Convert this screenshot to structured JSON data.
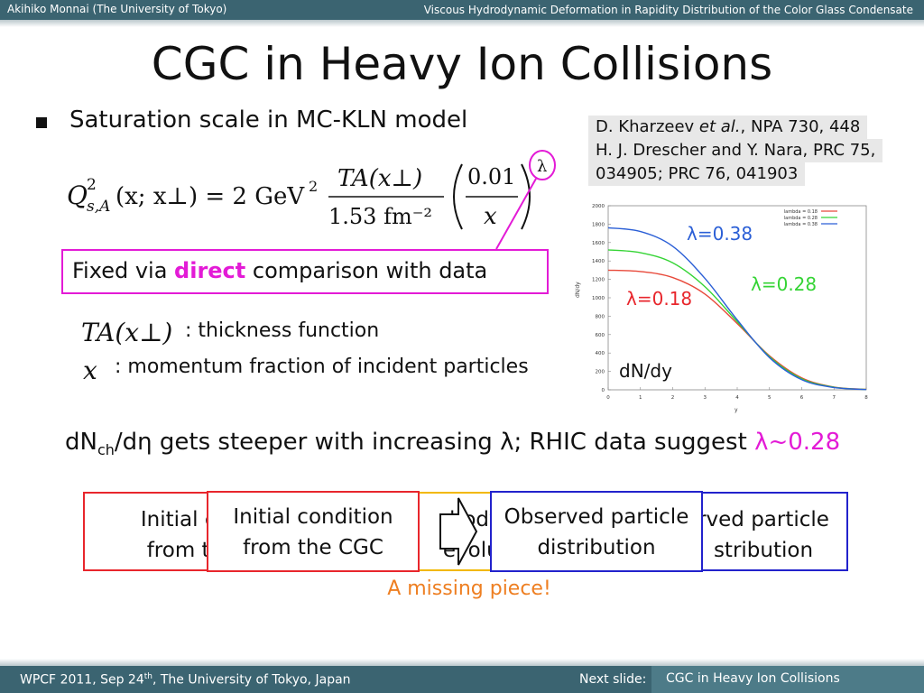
{
  "header": {
    "author": "Akihiko Monnai (The University of Tokyo)",
    "talk_title": "Viscous Hydrodynamic Deformation in Rapidity Distribution of the Color Glass Condensate"
  },
  "slide": {
    "title": "CGC in Heavy Ion Collisions",
    "bullet": "Saturation scale in MC-KLN model",
    "refs": {
      "line1_pre": "D. Kharzeev ",
      "line1_em": "et al.",
      "line1_post": ", NPA 730, 448",
      "line2": "H. J. Drescher and Y. Nara, PRC 75,",
      "line3": "034905; PRC 76, 041903"
    },
    "formula": {
      "lhs_main": "Q",
      "lhs_sup": "2",
      "lhs_sub": "s,A",
      "lhs_args": "(x; x⊥) = 2 GeV",
      "gev_sup": "2",
      "frac1_num": "TA(x⊥)",
      "frac1_den": "1.53 fm⁻²",
      "frac2_num": "0.01",
      "frac2_den": "x",
      "exponent": "λ"
    },
    "fixed_box": {
      "pre": "Fixed via ",
      "highlight": "direct",
      "post": " comparison with data"
    },
    "definitions": {
      "ta_symbol": "TA(x⊥)",
      "ta_text": ": thickness function",
      "x_symbol": "x",
      "x_text": ": momentum fraction of incident particles"
    },
    "statement": {
      "pre": "dN",
      "sub": "ch",
      "mid": "/dη gets steeper with increasing λ; RHIC data suggest ",
      "highlight": "λ~0.28"
    },
    "boxes": {
      "b1_line1": "Initial con",
      "b1_line2": "from the",
      "b2_line1": "Initial condition",
      "b2_line2": "from the CGC",
      "b3_line1": "drodyn",
      "b3_line2": "evoluti",
      "b4_line1": "Observed particle",
      "b4_line2": "distribution",
      "b5_line1": "rved particle",
      "b5_line2": "stribution"
    },
    "missing_piece": "A missing piece!"
  },
  "footer": {
    "venue_pre": "WPCF 2011, Sep 24",
    "venue_sup": "th",
    "venue_post": ", The University of Tokyo, Japan",
    "next_label": "Next slide:",
    "next_title": "CGC in Heavy Ion Collisions"
  },
  "colors": {
    "bar": "#3b6471",
    "magenta": "#e31bd6",
    "orange": "#ee7f22",
    "box_red": "#e8262c",
    "box_blue": "#2222cc",
    "box_yellow": "#f2b800",
    "line_red": "#e8493a",
    "line_green": "#35d435",
    "line_blue": "#2b5fd6"
  },
  "chart_data": {
    "type": "line",
    "x": [
      0,
      1,
      2,
      3,
      4,
      5,
      6,
      7,
      8
    ],
    "xlim": [
      0,
      8
    ],
    "ylim": [
      0,
      2000
    ],
    "x_ticks": [
      "0",
      "1",
      "2",
      "3",
      "4",
      "5",
      "6",
      "7",
      "8"
    ],
    "y_ticks": [
      "0",
      "200",
      "400",
      "600",
      "800",
      "1000",
      "1200",
      "1400",
      "1600",
      "1800",
      "2000"
    ],
    "xlabel": "y",
    "ylabel": "dN/dy",
    "legend_entries": [
      "lambda = 0.18",
      "lambda = 0.28",
      "lambda = 0.38"
    ],
    "legend_position": "top-right",
    "series": [
      {
        "name": "λ=0.18",
        "color": "#e8493a",
        "values": [
          1300,
          1285,
          1220,
          1040,
          720,
          370,
          130,
          30,
          5
        ]
      },
      {
        "name": "λ=0.28",
        "color": "#35d435",
        "values": [
          1520,
          1490,
          1380,
          1120,
          740,
          360,
          120,
          28,
          4
        ]
      },
      {
        "name": "λ=0.38",
        "color": "#2b5fd6",
        "values": [
          1760,
          1720,
          1560,
          1210,
          760,
          350,
          110,
          25,
          3
        ]
      }
    ],
    "annotations": {
      "inline_ylabel": "dN/dy"
    }
  }
}
